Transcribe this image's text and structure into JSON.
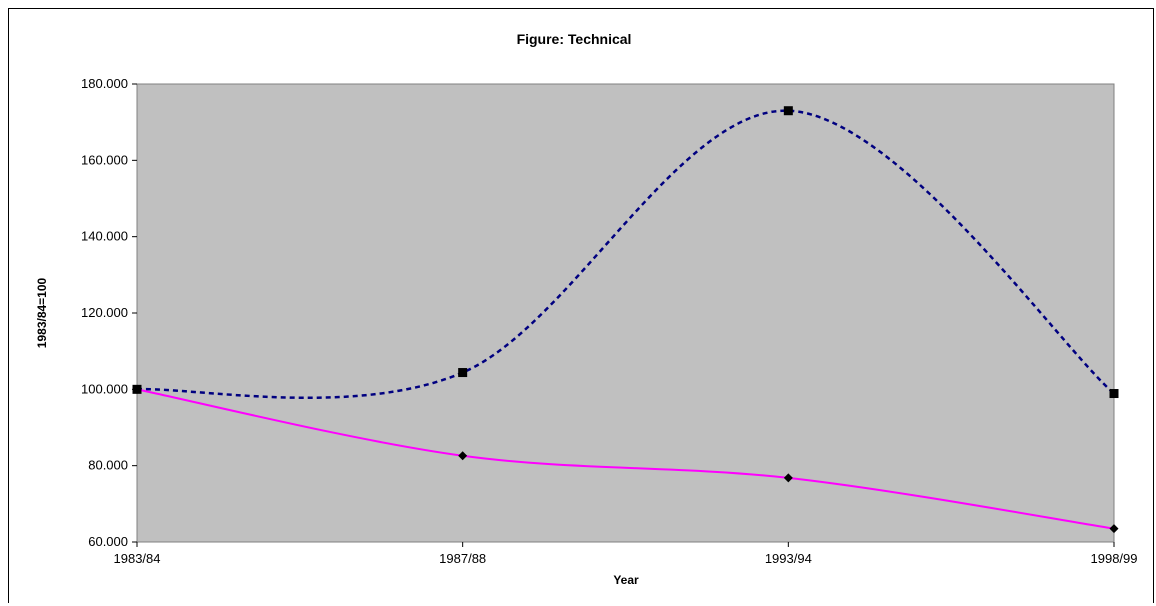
{
  "chart_data": {
    "type": "line",
    "title": "Figure:  Technical",
    "xlabel": "Year",
    "ylabel": "1983/84=100",
    "categories": [
      "1983/84",
      "1987/88",
      "1993/94",
      "1998/99"
    ],
    "ylim": [
      60,
      180
    ],
    "ytick_labels": [
      "60.000",
      "80.000",
      "100.000",
      "120.000",
      "140.000",
      "160.000",
      "180.000"
    ],
    "grid": false,
    "plot_background": "#C0C0C0",
    "series": [
      {
        "values": [
          100.0,
          104.4,
          173.0,
          98.9
        ],
        "color": "#000080",
        "line_style": "dashed",
        "marker": "square"
      },
      {
        "values": [
          100.0,
          82.6,
          76.8,
          63.5
        ],
        "color": "#FF00FF",
        "line_style": "solid",
        "marker": "diamond"
      }
    ]
  }
}
